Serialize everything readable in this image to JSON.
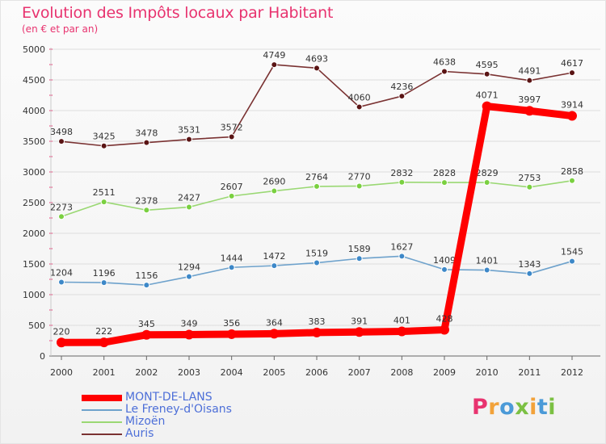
{
  "colors": {
    "title": "#e8336f",
    "grid": "#dddddd",
    "axis_text": "#333333",
    "tick_mark": "#e8336f"
  },
  "chart_data": {
    "type": "line",
    "title": "Evolution des Impôts locaux par Habitant",
    "subtitle": "(en € et par an)",
    "xlabel": "",
    "ylabel": "",
    "ylim": [
      0,
      5000
    ],
    "yticks": [
      0,
      500,
      1000,
      1500,
      2000,
      2500,
      3000,
      3500,
      4000,
      4500,
      5000
    ],
    "categories": [
      "2000",
      "2001",
      "2002",
      "2003",
      "2004",
      "2005",
      "2006",
      "2007",
      "2008",
      "2009",
      "2010",
      "2011",
      "2012"
    ],
    "legend_position": "bottom-left",
    "series": [
      {
        "name": "MONT-DE-LANS",
        "color": "#ff0000",
        "marker_color": "#ff0000",
        "label_color": "#333333",
        "values": [
          220,
          222,
          345,
          349,
          356,
          364,
          383,
          391,
          401,
          428,
          4071,
          3997,
          3914
        ]
      },
      {
        "name": "Le Freney-d'Oisans",
        "color": "#6ea2cc",
        "marker_color": "#3d88c8",
        "label_color": "#333333",
        "values": [
          1204,
          1196,
          1156,
          1294,
          1444,
          1472,
          1519,
          1589,
          1627,
          1409,
          1401,
          1343,
          1545
        ]
      },
      {
        "name": "Mizoën",
        "color": "#9ad873",
        "marker_color": "#7ad040",
        "label_color": "#333333",
        "values": [
          2273,
          2511,
          2378,
          2427,
          2607,
          2690,
          2764,
          2770,
          2832,
          2828,
          2829,
          2753,
          2858
        ]
      },
      {
        "name": "Auris",
        "color": "#7a3232",
        "marker_color": "#5a1414",
        "label_color": "#333333",
        "values": [
          3498,
          3425,
          3478,
          3531,
          3572,
          4749,
          4693,
          4060,
          4236,
          4638,
          4595,
          4491,
          4617
        ]
      }
    ],
    "legend_text_colors": [
      "#4d6fd8",
      "#4d6fd8",
      "#4d6fd8",
      "#4d6fd8"
    ]
  },
  "logo": {
    "letters": [
      "P",
      "r",
      "o",
      "x",
      "i",
      "t",
      "i"
    ],
    "colors": [
      "#e8336f",
      "#f2a23a",
      "#4b9ad8",
      "#7bc043",
      "#f2a23a",
      "#4b9ad8",
      "#7bc043"
    ]
  }
}
